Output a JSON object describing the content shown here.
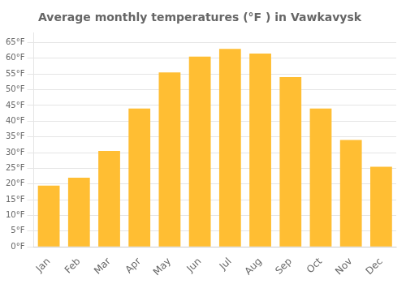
{
  "chart_data": {
    "type": "bar",
    "title": "Average monthly temperatures (°F ) in Vawkavysk",
    "categories": [
      "Jan",
      "Feb",
      "Mar",
      "Apr",
      "May",
      "Jun",
      "Jul",
      "Aug",
      "Sep",
      "Oct",
      "Nov",
      "Dec"
    ],
    "values": [
      19.5,
      22,
      30.5,
      44,
      55.5,
      60.5,
      63,
      61.5,
      54,
      44,
      34,
      25.5
    ],
    "color": "#FFBE33",
    "ylim": [
      0,
      68
    ],
    "yticks": [
      {
        "value": 0,
        "label": "0°F"
      },
      {
        "value": 5,
        "label": "5°F"
      },
      {
        "value": 10,
        "label": "10°F"
      },
      {
        "value": 15,
        "label": "15°F"
      },
      {
        "value": 20,
        "label": "20°F"
      },
      {
        "value": 25,
        "label": "25°F"
      },
      {
        "value": 30,
        "label": "30°F"
      },
      {
        "value": 35,
        "label": "35°F"
      },
      {
        "value": 40,
        "label": "40°F"
      },
      {
        "value": 45,
        "label": "45°F"
      },
      {
        "value": 50,
        "label": "50°F"
      },
      {
        "value": 55,
        "label": "55°F"
      },
      {
        "value": 60,
        "label": "60°F"
      },
      {
        "value": 65,
        "label": "65°F"
      }
    ],
    "grid": true
  }
}
